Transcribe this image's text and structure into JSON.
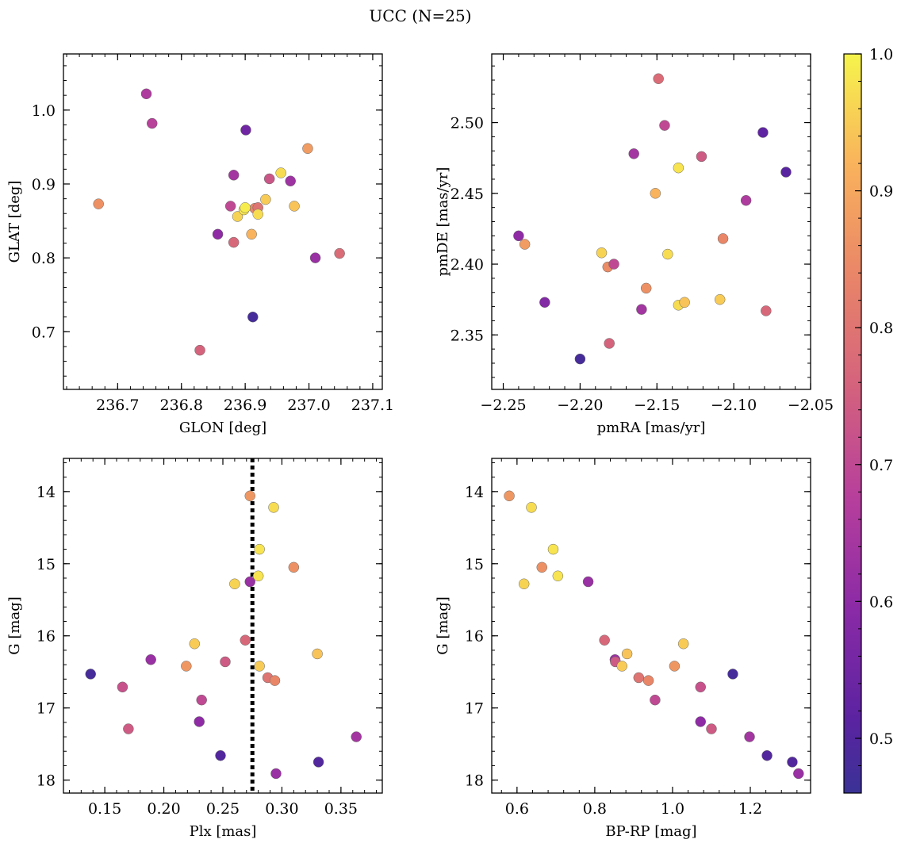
{
  "figure": {
    "title": "UCC (N=25)",
    "colorbar": {
      "colormap": "plasma",
      "range": [
        0.46,
        1.0
      ],
      "ticks": [
        "0.5",
        "0.6",
        "0.7",
        "0.8",
        "0.9",
        "1.0"
      ]
    }
  },
  "chart_data": [
    {
      "type": "scatter",
      "panel": "top-left",
      "xlabel": "GLON [deg]",
      "ylabel": "GLAT [deg]",
      "xlim": [
        236.615,
        237.115
      ],
      "ylim": [
        0.622,
        1.076
      ],
      "xticks": [
        "236.7",
        "236.8",
        "236.9",
        "237.0",
        "237.1"
      ],
      "yticks": [
        "0.7",
        "0.8",
        "0.9",
        "1.0"
      ],
      "points": [
        {
          "x": 236.67,
          "y": 0.873,
          "c": 0.86
        },
        {
          "x": 236.745,
          "y": 1.022,
          "c": 0.66
        },
        {
          "x": 236.754,
          "y": 0.982,
          "c": 0.68
        },
        {
          "x": 236.829,
          "y": 0.675,
          "c": 0.76
        },
        {
          "x": 236.857,
          "y": 0.832,
          "c": 0.6
        },
        {
          "x": 236.877,
          "y": 0.87,
          "c": 0.7
        },
        {
          "x": 236.882,
          "y": 0.912,
          "c": 0.64
        },
        {
          "x": 236.882,
          "y": 0.821,
          "c": 0.77
        },
        {
          "x": 236.888,
          "y": 0.856,
          "c": 0.96
        },
        {
          "x": 236.898,
          "y": 0.865,
          "c": 0.98
        },
        {
          "x": 236.901,
          "y": 0.973,
          "c": 0.55
        },
        {
          "x": 236.91,
          "y": 0.832,
          "c": 0.92
        },
        {
          "x": 236.912,
          "y": 0.72,
          "c": 0.48
        },
        {
          "x": 236.915,
          "y": 0.867,
          "c": 0.84
        },
        {
          "x": 236.92,
          "y": 0.868,
          "c": 0.8
        },
        {
          "x": 236.92,
          "y": 0.859,
          "c": 0.97
        },
        {
          "x": 236.932,
          "y": 0.879,
          "c": 0.95
        },
        {
          "x": 236.938,
          "y": 0.907,
          "c": 0.73
        },
        {
          "x": 236.956,
          "y": 0.915,
          "c": 0.97
        },
        {
          "x": 236.971,
          "y": 0.904,
          "c": 0.63
        },
        {
          "x": 236.977,
          "y": 0.87,
          "c": 0.94
        },
        {
          "x": 236.998,
          "y": 0.948,
          "c": 0.88
        },
        {
          "x": 237.01,
          "y": 0.8,
          "c": 0.62
        },
        {
          "x": 237.048,
          "y": 0.806,
          "c": 0.78
        },
        {
          "x": 236.9,
          "y": 0.868,
          "c": 0.99
        }
      ]
    },
    {
      "type": "scatter",
      "panel": "top-right",
      "xlabel": "pmRA [mas/yr]",
      "ylabel": "pmDE [mas/yr]",
      "xlim": [
        -2.2575,
        -2.05
      ],
      "ylim": [
        2.3115,
        2.5485
      ],
      "xticks": [
        "−2.25",
        "−2.20",
        "−2.15",
        "−2.10",
        "−2.05"
      ],
      "yticks": [
        "2.35",
        "2.40",
        "2.45",
        "2.50"
      ],
      "points": [
        {
          "x": -2.24,
          "y": 2.42,
          "c": 0.6
        },
        {
          "x": -2.236,
          "y": 2.414,
          "c": 0.88
        },
        {
          "x": -2.223,
          "y": 2.373,
          "c": 0.58
        },
        {
          "x": -2.2,
          "y": 2.333,
          "c": 0.48
        },
        {
          "x": -2.186,
          "y": 2.408,
          "c": 0.96
        },
        {
          "x": -2.182,
          "y": 2.398,
          "c": 0.85
        },
        {
          "x": -2.181,
          "y": 2.344,
          "c": 0.76
        },
        {
          "x": -2.178,
          "y": 2.4,
          "c": 0.7
        },
        {
          "x": -2.165,
          "y": 2.478,
          "c": 0.64
        },
        {
          "x": -2.16,
          "y": 2.368,
          "c": 0.64
        },
        {
          "x": -2.157,
          "y": 2.383,
          "c": 0.86
        },
        {
          "x": -2.151,
          "y": 2.45,
          "c": 0.92
        },
        {
          "x": -2.149,
          "y": 2.531,
          "c": 0.78
        },
        {
          "x": -2.145,
          "y": 2.498,
          "c": 0.7
        },
        {
          "x": -2.143,
          "y": 2.407,
          "c": 0.97
        },
        {
          "x": -2.136,
          "y": 2.371,
          "c": 0.97
        },
        {
          "x": -2.136,
          "y": 2.468,
          "c": 0.98
        },
        {
          "x": -2.132,
          "y": 2.373,
          "c": 0.94
        },
        {
          "x": -2.121,
          "y": 2.476,
          "c": 0.74
        },
        {
          "x": -2.109,
          "y": 2.375,
          "c": 0.95
        },
        {
          "x": -2.107,
          "y": 2.418,
          "c": 0.84
        },
        {
          "x": -2.092,
          "y": 2.445,
          "c": 0.66
        },
        {
          "x": -2.081,
          "y": 2.493,
          "c": 0.52
        },
        {
          "x": -2.079,
          "y": 2.367,
          "c": 0.77
        },
        {
          "x": -2.066,
          "y": 2.465,
          "c": 0.51
        }
      ]
    },
    {
      "type": "scatter",
      "panel": "bottom-left",
      "xlabel": "Plx [mas]",
      "ylabel": "G [mag]",
      "xlim": [
        0.115,
        0.385
      ],
      "ylim": [
        18.18,
        13.54
      ],
      "y_inverted": true,
      "vline": 0.275,
      "xticks": [
        "0.15",
        "0.20",
        "0.25",
        "0.30",
        "0.35"
      ],
      "yticks": [
        "14",
        "15",
        "16",
        "17",
        "18"
      ],
      "points": [
        {
          "x": 0.138,
          "y": 16.53,
          "c": 0.48
        },
        {
          "x": 0.165,
          "y": 16.71,
          "c": 0.72
        },
        {
          "x": 0.17,
          "y": 17.29,
          "c": 0.74
        },
        {
          "x": 0.189,
          "y": 16.33,
          "c": 0.62
        },
        {
          "x": 0.219,
          "y": 16.42,
          "c": 0.87
        },
        {
          "x": 0.226,
          "y": 16.11,
          "c": 0.95
        },
        {
          "x": 0.23,
          "y": 17.19,
          "c": 0.6
        },
        {
          "x": 0.232,
          "y": 16.89,
          "c": 0.7
        },
        {
          "x": 0.248,
          "y": 17.66,
          "c": 0.5
        },
        {
          "x": 0.252,
          "y": 16.36,
          "c": 0.74
        },
        {
          "x": 0.26,
          "y": 15.28,
          "c": 0.96
        },
        {
          "x": 0.269,
          "y": 16.06,
          "c": 0.77
        },
        {
          "x": 0.273,
          "y": 14.06,
          "c": 0.87
        },
        {
          "x": 0.273,
          "y": 15.25,
          "c": 0.62
        },
        {
          "x": 0.28,
          "y": 15.17,
          "c": 0.98
        },
        {
          "x": 0.281,
          "y": 14.8,
          "c": 0.98
        },
        {
          "x": 0.281,
          "y": 16.42,
          "c": 0.95
        },
        {
          "x": 0.288,
          "y": 16.58,
          "c": 0.8
        },
        {
          "x": 0.293,
          "y": 14.22,
          "c": 0.97
        },
        {
          "x": 0.294,
          "y": 16.62,
          "c": 0.84
        },
        {
          "x": 0.295,
          "y": 17.91,
          "c": 0.62
        },
        {
          "x": 0.31,
          "y": 15.05,
          "c": 0.86
        },
        {
          "x": 0.33,
          "y": 16.25,
          "c": 0.94
        },
        {
          "x": 0.331,
          "y": 17.75,
          "c": 0.5
        },
        {
          "x": 0.363,
          "y": 17.4,
          "c": 0.64
        }
      ]
    },
    {
      "type": "scatter",
      "panel": "bottom-right",
      "xlabel": "BP-RP [mag]",
      "ylabel": "G [mag]",
      "xlim": [
        0.535,
        1.355
      ],
      "ylim": [
        18.18,
        13.54
      ],
      "y_inverted": true,
      "xticks": [
        "0.6",
        "0.8",
        "1.0",
        "1.2"
      ],
      "yticks": [
        "14",
        "15",
        "16",
        "17",
        "18"
      ],
      "points": [
        {
          "x": 0.58,
          "y": 14.06,
          "c": 0.87
        },
        {
          "x": 0.618,
          "y": 15.28,
          "c": 0.96
        },
        {
          "x": 0.637,
          "y": 14.22,
          "c": 0.97
        },
        {
          "x": 0.664,
          "y": 15.05,
          "c": 0.86
        },
        {
          "x": 0.693,
          "y": 14.8,
          "c": 0.98
        },
        {
          "x": 0.705,
          "y": 15.17,
          "c": 0.98
        },
        {
          "x": 0.783,
          "y": 15.25,
          "c": 0.62
        },
        {
          "x": 0.825,
          "y": 16.06,
          "c": 0.77
        },
        {
          "x": 0.852,
          "y": 16.33,
          "c": 0.62
        },
        {
          "x": 0.853,
          "y": 16.36,
          "c": 0.74
        },
        {
          "x": 0.87,
          "y": 16.42,
          "c": 0.95
        },
        {
          "x": 0.883,
          "y": 16.25,
          "c": 0.94
        },
        {
          "x": 0.913,
          "y": 16.58,
          "c": 0.8
        },
        {
          "x": 0.938,
          "y": 16.62,
          "c": 0.84
        },
        {
          "x": 0.955,
          "y": 16.89,
          "c": 0.7
        },
        {
          "x": 1.005,
          "y": 16.42,
          "c": 0.87
        },
        {
          "x": 1.028,
          "y": 16.11,
          "c": 0.95
        },
        {
          "x": 1.072,
          "y": 17.19,
          "c": 0.6
        },
        {
          "x": 1.072,
          "y": 16.71,
          "c": 0.72
        },
        {
          "x": 1.1,
          "y": 17.29,
          "c": 0.74
        },
        {
          "x": 1.155,
          "y": 16.53,
          "c": 0.48
        },
        {
          "x": 1.198,
          "y": 17.4,
          "c": 0.64
        },
        {
          "x": 1.243,
          "y": 17.66,
          "c": 0.5
        },
        {
          "x": 1.308,
          "y": 17.75,
          "c": 0.5
        },
        {
          "x": 1.324,
          "y": 17.91,
          "c": 0.62
        }
      ]
    }
  ]
}
